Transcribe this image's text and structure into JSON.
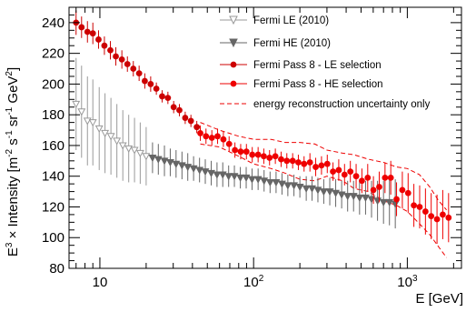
{
  "chart_data": {
    "type": "scatter",
    "x_scale": "log",
    "xlim": [
      6.3,
      2250
    ],
    "ylim": [
      80,
      250
    ],
    "x_ticks": [
      {
        "value": 10,
        "base": "10",
        "exp": ""
      },
      {
        "value": 100,
        "base": "10",
        "exp": "2"
      },
      {
        "value": 1000,
        "base": "10",
        "exp": "3"
      }
    ],
    "y_ticks": [
      80,
      100,
      120,
      140,
      160,
      180,
      200,
      220,
      240
    ],
    "xlabel": "E [GeV]",
    "ylabel": {
      "p1": "E",
      "s1": "3",
      "p2": " × Intensity [m",
      "s2": "-2",
      "p3": " s",
      "s3": "-1",
      "p4": " sr",
      "s4": "-1",
      "p5": " GeV",
      "s5": "2",
      "p6": "]"
    },
    "legend": {
      "position": "top-right",
      "entries": [
        {
          "label": "Fermi LE (2010)"
        },
        {
          "label": "Fermi HE (2010)"
        },
        {
          "label": "Fermi Pass 8 - LE selection"
        },
        {
          "label": "Fermi Pass 8 - HE selection"
        },
        {
          "label": "energy reconstruction uncertainty only"
        }
      ]
    },
    "colors": {
      "le2010": "#999999",
      "he2010": "#666666",
      "pass8_le": "#cc0000",
      "pass8_he": "#ee0000",
      "band": "#ee0000"
    },
    "series": [
      {
        "name": "Fermi LE (2010)",
        "marker": "open-triangle-down",
        "x": [
          7.0,
          7.6,
          8.3,
          9.0,
          9.9,
          10.8,
          11.8,
          12.9,
          14.1,
          15.4,
          16.8,
          18.3,
          20.0
        ],
        "y": [
          187,
          182,
          176,
          175,
          171,
          168,
          166,
          163,
          160,
          158,
          157,
          155,
          153
        ],
        "err": [
          30,
          30,
          29,
          28,
          27,
          26,
          25,
          24,
          23,
          22,
          21,
          20,
          19
        ]
      },
      {
        "name": "Fermi HE (2010)",
        "marker": "filled-triangle-down",
        "x": [
          22,
          24,
          26.3,
          28.7,
          31.3,
          34.2,
          37.3,
          40.7,
          44.5,
          48.5,
          53,
          57.8,
          63,
          68.8,
          75,
          82,
          89.5,
          97.7,
          107,
          117,
          128,
          140,
          153,
          167,
          183,
          200,
          220,
          240,
          262,
          286,
          313,
          342,
          374,
          409,
          447,
          489,
          535,
          585,
          640,
          700,
          765,
          835
        ],
        "y": [
          152,
          151,
          150,
          149,
          148,
          147,
          146,
          145,
          144,
          143,
          142,
          141,
          141,
          140,
          140,
          139,
          139,
          138,
          138,
          137,
          136,
          136,
          135,
          134,
          134,
          133,
          132,
          132,
          131,
          130,
          130,
          129,
          128,
          127,
          127,
          126,
          126,
          125,
          124,
          123,
          123,
          122
        ],
        "err": [
          10,
          10,
          10,
          9,
          9,
          9,
          9,
          8,
          8,
          8,
          8,
          8,
          8,
          7,
          7,
          7,
          7,
          7,
          7,
          7,
          7,
          7,
          7,
          7,
          7,
          7,
          8,
          8,
          8,
          8,
          9,
          9,
          9,
          10,
          10,
          11,
          11,
          12,
          13,
          14,
          15,
          16
        ]
      },
      {
        "name": "Fermi Pass 8 - LE selection",
        "marker": "filled-circle",
        "x": [
          7.0,
          7.6,
          8.3,
          9.0,
          9.8,
          10.7,
          11.7,
          12.7,
          13.9,
          15.1,
          16.5,
          18.0,
          19.6,
          21.4,
          23.3,
          25.4,
          27.7,
          30.2,
          32.9,
          35.9,
          39.1,
          42.7
        ],
        "y": [
          240,
          237,
          234,
          233,
          229,
          225,
          222,
          218,
          216,
          213,
          210,
          207,
          202,
          200,
          197,
          192,
          191,
          185,
          183,
          178,
          176,
          172
        ],
        "err": [
          8,
          7,
          7,
          7,
          6,
          6,
          6,
          6,
          6,
          5,
          5,
          5,
          5,
          5,
          4,
          4,
          4,
          4,
          4,
          4,
          4,
          4
        ]
      },
      {
        "name": "Fermi Pass 8 - HE selection",
        "marker": "filled-circle",
        "x": [
          45,
          49,
          53.5,
          58.3,
          63.6,
          69.3,
          75.6,
          82.4,
          89.8,
          98,
          107,
          116.5,
          127,
          138.5,
          151,
          164.5,
          179.5,
          195.5,
          213,
          232.5,
          253.5,
          276.5,
          301.5,
          328.5,
          358,
          390.5,
          426,
          464.5,
          506.5,
          552.5,
          602,
          656.5,
          716,
          780.5,
          851,
          928,
          1012,
          1103,
          1203,
          1312,
          1430,
          1560,
          1700,
          1855
        ],
        "y": [
          168,
          166,
          165,
          166,
          164,
          161,
          157,
          156,
          156,
          154,
          154,
          153,
          152,
          153,
          151,
          150,
          150,
          149,
          148,
          149,
          146,
          147,
          148,
          143,
          144,
          141,
          143,
          140,
          137,
          139,
          131,
          133,
          139,
          139,
          125,
          131,
          129,
          121,
          120,
          117,
          114,
          112,
          115,
          113
        ],
        "err": [
          5,
          5,
          5,
          5,
          5,
          5,
          5,
          5,
          5,
          5,
          5,
          5,
          5,
          5,
          5,
          5,
          5,
          5,
          5,
          6,
          6,
          6,
          6,
          6,
          7,
          7,
          7,
          8,
          8,
          9,
          9,
          10,
          10,
          11,
          11,
          12,
          13,
          14,
          14,
          15,
          15,
          16,
          16,
          16
        ]
      }
    ],
    "band": {
      "name": "energy reconstruction uncertainty only",
      "x": [
        45,
        60,
        80,
        100,
        130,
        160,
        200,
        250,
        300,
        380,
        450,
        560,
        700,
        850,
        1000,
        1200,
        1400,
        1600,
        1800
      ],
      "upper": [
        175,
        170,
        166,
        164,
        164,
        162,
        162,
        161,
        157,
        155,
        154,
        151,
        149,
        146,
        145,
        141,
        133,
        124,
        118
      ],
      "lower": [
        161,
        159,
        153,
        148,
        145,
        142,
        138,
        137,
        140,
        137,
        132,
        130,
        124,
        121,
        117,
        109,
        102,
        94,
        87
      ]
    }
  }
}
